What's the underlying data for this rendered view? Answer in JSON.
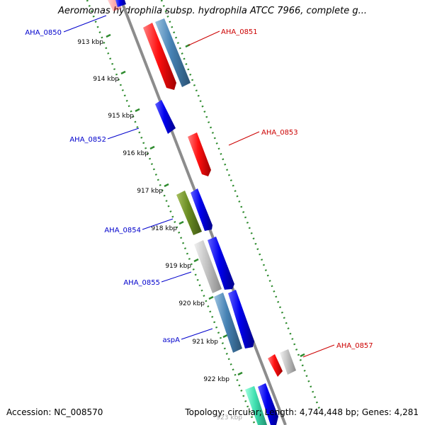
{
  "title": "Aeromonas hydrophila subsp. hydrophila ATCC 7966, complete g...",
  "footer": {
    "accession": "Accession: NC_008570",
    "topology": "Topology: circular; Length: 4,744,448 bp; Genes: 4,281"
  },
  "colors": {
    "backbone": "#8c8c8c",
    "tick_line": "#2e8b2e",
    "forward_label": "#cc0000",
    "reverse_label": "#0000cc"
  },
  "ticks": [
    "913 kbp",
    "914 kbp",
    "915 kbp",
    "916 kbp",
    "917 kbp",
    "918 kbp",
    "919 kbp",
    "920 kbp",
    "921 kbp",
    "922 kbp",
    "923 kbp"
  ],
  "gene_labels": [
    {
      "name": "AHA_0850",
      "strand": "reverse"
    },
    {
      "name": "AHA_0851",
      "strand": "forward"
    },
    {
      "name": "AHA_0852",
      "strand": "reverse"
    },
    {
      "name": "AHA_0853",
      "strand": "forward"
    },
    {
      "name": "AHA_0854",
      "strand": "reverse"
    },
    {
      "name": "AHA_0855",
      "strand": "reverse"
    },
    {
      "name": "aspA",
      "strand": "reverse"
    },
    {
      "name": "AHA_0857",
      "strand": "forward"
    }
  ],
  "legend_colors": {
    "red": "#ff0000",
    "blue": "#0000ee",
    "steel": "#4682b4",
    "olive": "#6b8e23",
    "gray": "#bfbfbf",
    "teal": "#40e0b0"
  }
}
